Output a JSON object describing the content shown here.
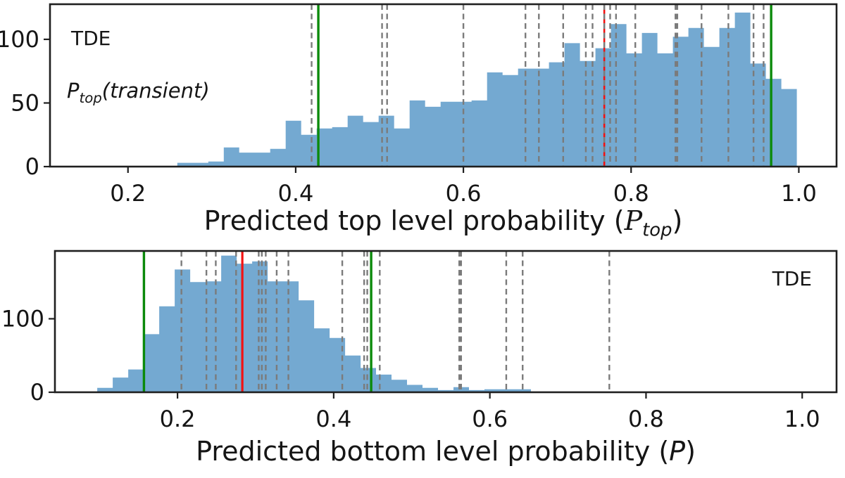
{
  "figure": {
    "background": "#ffffff"
  },
  "colors": {
    "bar": "#74a9d1",
    "dashed_line": "#7b7b7b",
    "green_line": "#0b8a0b",
    "red_line": "#f31111",
    "spine": "#1f1f1f",
    "text": "#151515"
  },
  "chart_data": [
    {
      "type": "histogram",
      "position": "top",
      "corner_label": "TDE",
      "inside_label": {
        "symbol": "P",
        "sub": "top",
        "suffix": "(transient)"
      },
      "xlabel": {
        "prefix": "Predicted top level probability (",
        "symbol": "P",
        "sub": "top",
        "suffix": ")"
      },
      "xlim": [
        0.107,
        1.045
      ],
      "ylim": [
        0,
        127.6
      ],
      "xticks": [
        0.2,
        0.4,
        0.6,
        0.8,
        1.0
      ],
      "yticks": [
        0,
        50,
        100
      ],
      "bin_start": 0.2588,
      "bin_width": 0.01847,
      "bin_heights": [
        3,
        3,
        4,
        15,
        11,
        11,
        14,
        36,
        25,
        30,
        31,
        40,
        35,
        40,
        30,
        52,
        47,
        51,
        51,
        52,
        74,
        72,
        77,
        77,
        82,
        97,
        83,
        93,
        112,
        89,
        105,
        89,
        102,
        109,
        94,
        109,
        121,
        81,
        69,
        61
      ],
      "vlines_dashed": [
        0.419,
        0.503,
        0.509,
        0.6,
        0.674,
        0.69,
        0.719,
        0.746,
        0.754,
        0.775,
        0.782,
        0.805,
        0.884,
        0.916,
        0.946,
        0.958
      ],
      "vlines_dashed_thick": [
        0.854
      ],
      "vlines_green": [
        0.427,
        0.967
      ],
      "vline_red": 0.768,
      "red_dashed": true
    },
    {
      "type": "histogram",
      "position": "bottom",
      "corner_label": "TDE",
      "xlabel": {
        "prefix": "Predicted bottom level probability (",
        "symbol": "P",
        "sub": "",
        "suffix": ")"
      },
      "xlim": [
        0.043,
        1.044
      ],
      "ylim": [
        0,
        192.3
      ],
      "xticks": [
        0.2,
        0.4,
        0.6,
        0.8,
        1.0
      ],
      "yticks": [
        0,
        100
      ],
      "bin_start": 0.0972,
      "bin_width": 0.019837,
      "bin_heights": [
        6,
        20,
        31,
        79,
        117,
        167,
        150,
        151,
        186,
        175,
        178,
        151,
        151,
        125,
        87,
        74,
        50,
        33,
        24,
        17,
        10,
        6,
        3,
        7,
        3,
        4,
        4,
        4
      ],
      "vlines_dashed": [
        0.205,
        0.237,
        0.249,
        0.275,
        0.304,
        0.308,
        0.313,
        0.327,
        0.342,
        0.411,
        0.439,
        0.443,
        0.459,
        0.621,
        0.642,
        0.753
      ],
      "vlines_dashed_thick": [
        0.562
      ],
      "vlines_green": [
        0.157,
        0.448
      ],
      "vline_red": 0.283,
      "red_dashed": false
    }
  ]
}
